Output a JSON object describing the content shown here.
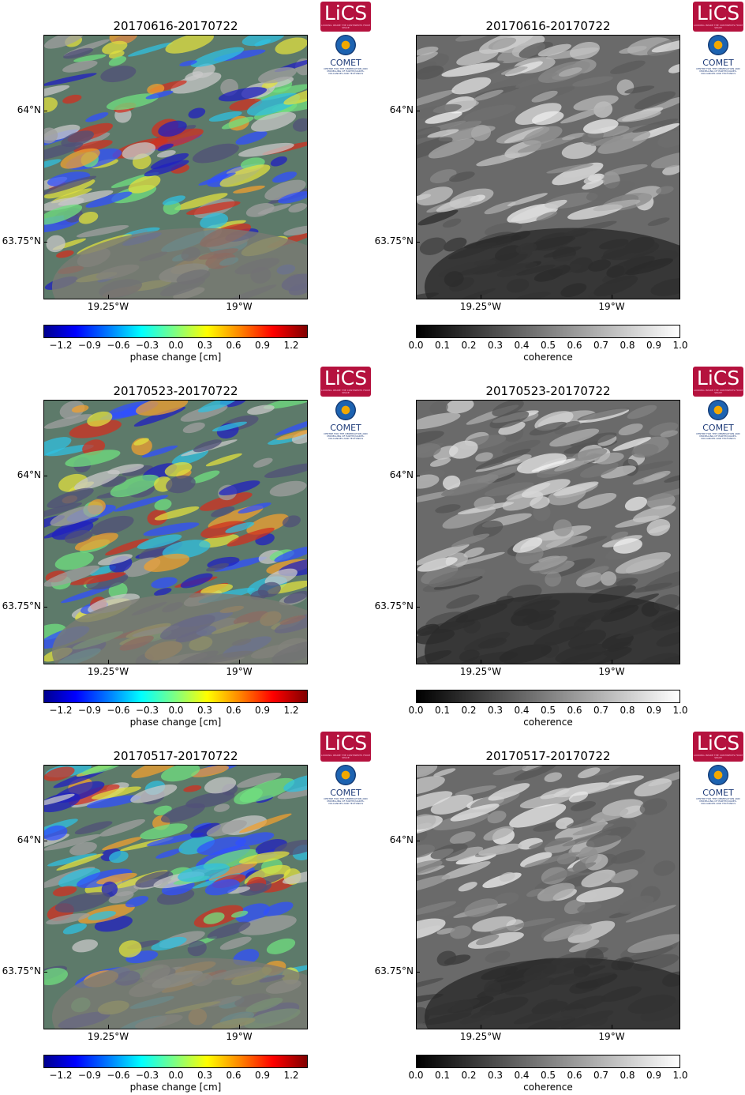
{
  "panels": [
    {
      "title": "20170616-20170722",
      "type": "phase"
    },
    {
      "title": "20170616-20170722",
      "type": "coherence"
    },
    {
      "title": "20170523-20170722",
      "type": "phase"
    },
    {
      "title": "20170523-20170722",
      "type": "coherence"
    },
    {
      "title": "20170517-20170722",
      "type": "phase"
    },
    {
      "title": "20170517-20170722",
      "type": "coherence"
    }
  ],
  "axes": {
    "y_ticks": [
      "64°N",
      "63.75°N"
    ],
    "x_ticks": [
      "19.25°W",
      "19°W"
    ]
  },
  "colorbars": {
    "phase": {
      "label": "phase change [cm]",
      "ticks": [
        "−1.2",
        "−0.9",
        "−0.6",
        "−0.3",
        "0.0",
        "0.3",
        "0.6",
        "0.9",
        "1.2"
      ]
    },
    "coherence": {
      "label": "coherence",
      "ticks": [
        "0.0",
        "0.1",
        "0.2",
        "0.3",
        "0.4",
        "0.5",
        "0.6",
        "0.7",
        "0.8",
        "0.9",
        "1.0"
      ]
    }
  },
  "logos": {
    "lics": "LiCS",
    "lics_sub": "LOOKING INSIDE THE CONTINENTS FROM SPACE",
    "comet": "COMET",
    "comet_sub": "CENTRE FOR THE OBSERVATION AND MODELLING OF EARTHQUAKES, VOLCANOES AND TECTONICS"
  },
  "colors": {
    "lics_brand": "#b5123e",
    "comet_brand": "#1d3a78"
  }
}
